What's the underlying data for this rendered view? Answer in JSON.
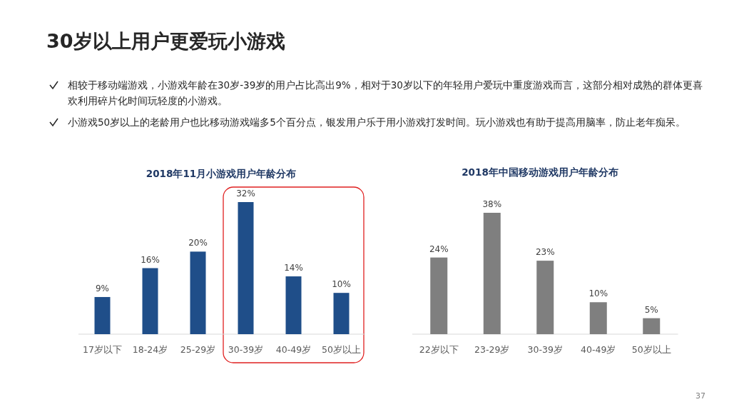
{
  "chart_data": [
    {
      "type": "bar",
      "title": "2018年11月小游戏用户年龄分布",
      "categories": [
        "17岁以下",
        "18-24岁",
        "25-29岁",
        "30-39岁",
        "40-49岁",
        "50岁以上"
      ],
      "values": [
        9,
        16,
        20,
        32,
        14,
        10
      ],
      "value_labels": [
        "9%",
        "16%",
        "20%",
        "32%",
        "14%",
        "10%"
      ],
      "color": "#1f4e89",
      "annotations": [
        "30岁以上用户更爱玩小游戏",
        "相较于移动端游戏，小游戏年龄在30岁-39岁的用户占比高出9%，相对于30岁以下的年轻用户爱玩中重度游戏而言，这部分相对成熟的群体更喜欢利用碎片化时间玩轻度的小游戏。",
        "小游戏50岁以上的老龄用户也比移动游戏端多5个百分点，银发用户乐于用小游戏打发时间。玩小游戏也有助于提高用脑率，防止老年痴呆。",
        "37"
      ]
    },
    {
      "type": "bar",
      "title": "2018年中国移动游戏用户年龄分布",
      "categories": [
        "22岁以下",
        "23-29岁",
        "30-39岁",
        "40-49岁",
        "50岁以上"
      ],
      "values": [
        24,
        38,
        23,
        10,
        5
      ],
      "value_labels": [
        "24%",
        "38%",
        "23%",
        "10%",
        "5%"
      ],
      "color": "#7f7f7f"
    }
  ]
}
